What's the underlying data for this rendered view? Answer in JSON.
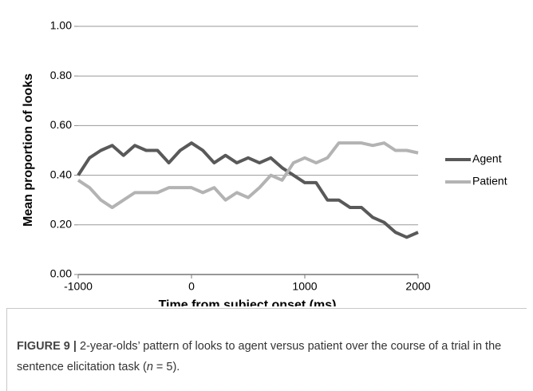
{
  "chart_data": {
    "type": "line",
    "xlabel": "Time from subject onset  (ms)",
    "ylabel": "Mean proportion of looks",
    "x": [
      -1000,
      -900,
      -800,
      -700,
      -600,
      -500,
      -400,
      -300,
      -200,
      -100,
      0,
      100,
      200,
      300,
      400,
      500,
      600,
      700,
      800,
      900,
      1000,
      1100,
      1200,
      1300,
      1400,
      1500,
      1600,
      1700,
      1800,
      1900,
      2000
    ],
    "series": [
      {
        "name": "Agent",
        "color": "#595959",
        "values": [
          0.4,
          0.47,
          0.5,
          0.52,
          0.48,
          0.52,
          0.5,
          0.5,
          0.45,
          0.5,
          0.53,
          0.5,
          0.45,
          0.48,
          0.45,
          0.47,
          0.45,
          0.47,
          0.43,
          0.4,
          0.37,
          0.37,
          0.3,
          0.3,
          0.27,
          0.27,
          0.23,
          0.21,
          0.17,
          0.15,
          0.17
        ]
      },
      {
        "name": "Patient",
        "color": "#b3b3b3",
        "values": [
          0.38,
          0.35,
          0.3,
          0.27,
          0.3,
          0.33,
          0.33,
          0.33,
          0.35,
          0.35,
          0.35,
          0.33,
          0.35,
          0.3,
          0.33,
          0.31,
          0.35,
          0.4,
          0.38,
          0.45,
          0.47,
          0.45,
          0.47,
          0.53,
          0.53,
          0.53,
          0.52,
          0.53,
          0.5,
          0.5,
          0.49
        ]
      }
    ],
    "xlim": [
      -1000,
      2000
    ],
    "xticks": [
      -1000,
      0,
      1000,
      2000
    ],
    "ylim": [
      0,
      1
    ],
    "yticks": [
      {
        "value": 0,
        "label": "0.00"
      },
      {
        "value": 0.2,
        "label": "0.20"
      },
      {
        "value": 0.4,
        "label": "0.40"
      },
      {
        "value": 0.6,
        "label": "0.60"
      },
      {
        "value": 0.8,
        "label": "0.80"
      },
      {
        "value": 1,
        "label": "1.00"
      }
    ],
    "grid": true,
    "legend": "right"
  },
  "caption": {
    "label": "FIGURE 9 |",
    "text": "2-year-olds’ pattern of looks to agent versus patient over the course of a trial in the sentence elicitation task (",
    "italic": "n",
    "tail": "= 5)."
  }
}
